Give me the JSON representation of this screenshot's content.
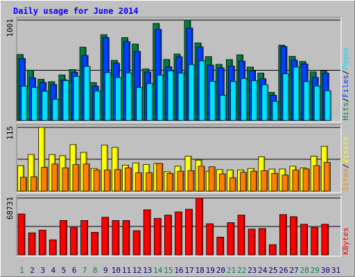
{
  "chart_data": {
    "type": "bar",
    "title": "Daily usage for June 2014",
    "days": [
      1,
      2,
      3,
      4,
      5,
      6,
      7,
      8,
      9,
      10,
      11,
      12,
      13,
      14,
      15,
      16,
      17,
      18,
      19,
      20,
      21,
      22,
      23,
      24,
      25,
      26,
      27,
      28,
      29,
      30,
      31
    ],
    "weekend_days": [
      1,
      7,
      8,
      14,
      15,
      21,
      22,
      28,
      29
    ],
    "colors": {
      "hits": "#008040",
      "files": "#0040ff",
      "pages": "#00e0ff",
      "visits": "#ffff00",
      "sites": "#ff8000",
      "kbytes": "#ff0000",
      "title": "#0000ff",
      "weekend": "#00805c",
      "weekday": "#000080"
    },
    "panels": [
      {
        "id": "hits-files-pages",
        "max_label": "1001",
        "max": 1001,
        "series": [
          {
            "name": "Hits",
            "color": "#008040",
            "values": [
              658,
              502,
              411,
              387,
              454,
              508,
              731,
              378,
              855,
              600,
              826,
              762,
              514,
              967,
              608,
              663,
              1001,
              773,
              637,
              560,
              607,
              655,
              532,
              473,
              281,
              751,
              640,
              588,
              485,
              493
            ]
          },
          {
            "name": "Files",
            "color": "#0040ff",
            "values": [
              618,
              425,
              380,
              359,
              406,
              481,
              648,
              342,
              827,
              572,
              786,
              688,
              483,
              909,
              535,
              635,
              921,
              733,
              552,
              525,
              542,
              592,
              495,
              416,
              252,
              738,
              602,
              564,
              430,
              473
            ]
          },
          {
            "name": "Pages",
            "color": "#00e0ff",
            "values": [
              343,
              330,
              292,
              212,
              398,
              440,
              540,
              295,
              478,
              428,
              475,
              329,
              367,
              452,
              496,
              472,
              558,
              595,
              390,
              252,
              388,
              420,
              397,
              357,
              190,
              465,
              532,
              388,
              344,
              297
            ]
          }
        ],
        "legend_order": [
          "Hits",
          "Files",
          "Pages"
        ]
      },
      {
        "id": "visits-sites",
        "max_label": "115",
        "max": 115,
        "series": [
          {
            "name": "Visits",
            "color": "#ffff00",
            "values": [
              46,
              66,
              115,
              66,
              64,
              84,
              70,
              41,
              83,
              79,
              47,
              51,
              48,
              50,
              35,
              45,
              63,
              56,
              36,
              39,
              38,
              38,
              41,
              62,
              40,
              40,
              45,
              42,
              63,
              81
            ]
          },
          {
            "name": "Sites",
            "color": "#ff8000",
            "values": [
              25,
              26,
              43,
              49,
              42,
              48,
              49,
              38,
              38,
              39,
              42,
              33,
              33,
              50,
              32,
              36,
              37,
              45,
              44,
              31,
              24,
              34,
              36,
              37,
              32,
              29,
              38,
              40,
              46,
              52
            ]
          }
        ],
        "legend_order": [
          "Sites",
          "Visits"
        ]
      },
      {
        "id": "kbytes",
        "max_label": "68731",
        "max": 68731,
        "series": [
          {
            "name": "KBytes",
            "color": "#ff0000",
            "values": [
              49450,
              26650,
              29900,
              18200,
              41600,
              33150,
              41600,
              27300,
              45500,
              41600,
              41600,
              29250,
              54600,
              44200,
              48100,
              52000,
              55250,
              68731,
              37700,
              21450,
              39000,
              48100,
              31200,
              31850,
              12350,
              48750,
              46150,
              37050,
              33150,
              37050
            ]
          }
        ],
        "legend_order": [
          "KBytes"
        ]
      }
    ]
  }
}
